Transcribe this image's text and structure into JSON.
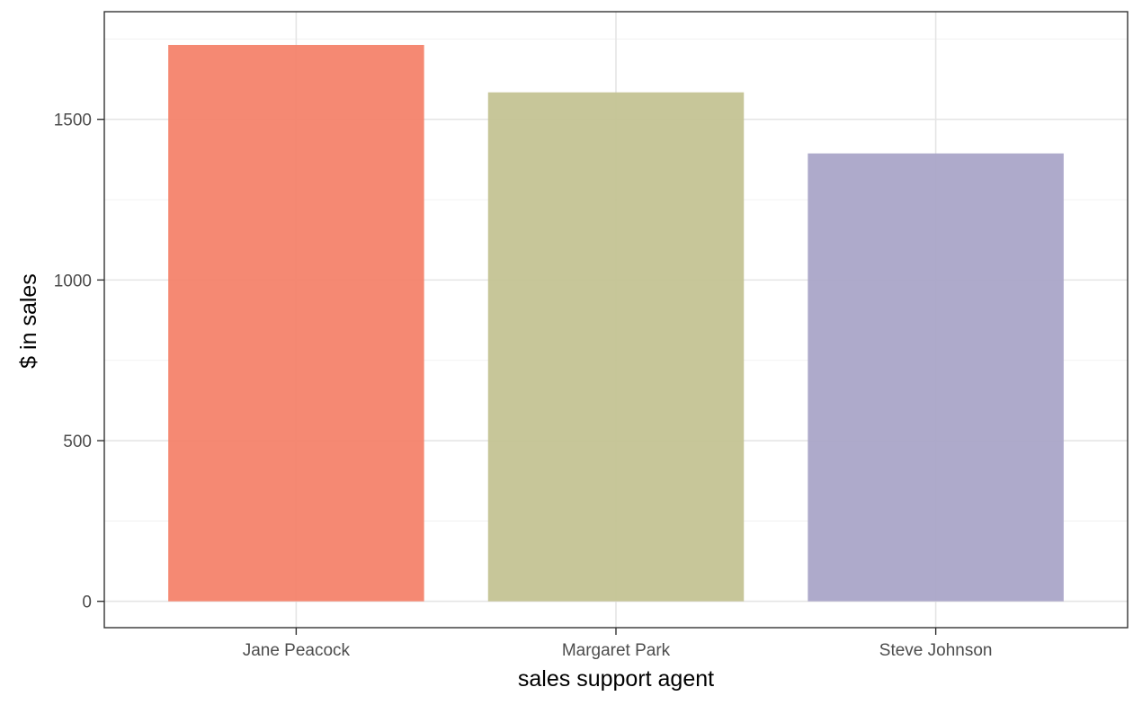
{
  "chart_data": {
    "type": "bar",
    "categories": [
      "Jane Peacock",
      "Margaret Park",
      "Steve Johnson"
    ],
    "values": [
      1731.51,
      1584.0,
      1393.92
    ],
    "colors": [
      "#f4836c",
      "#c4c393",
      "#aaa5c8"
    ],
    "title": "",
    "xlabel": "sales support agent",
    "ylabel": "$ in sales",
    "ylim": [
      -82,
      1835
    ],
    "yticks": [
      0,
      500,
      1000,
      1500
    ],
    "ytick_labels": [
      "0",
      "500",
      "1000",
      "1500"
    ],
    "grid": true,
    "legend": "none"
  }
}
